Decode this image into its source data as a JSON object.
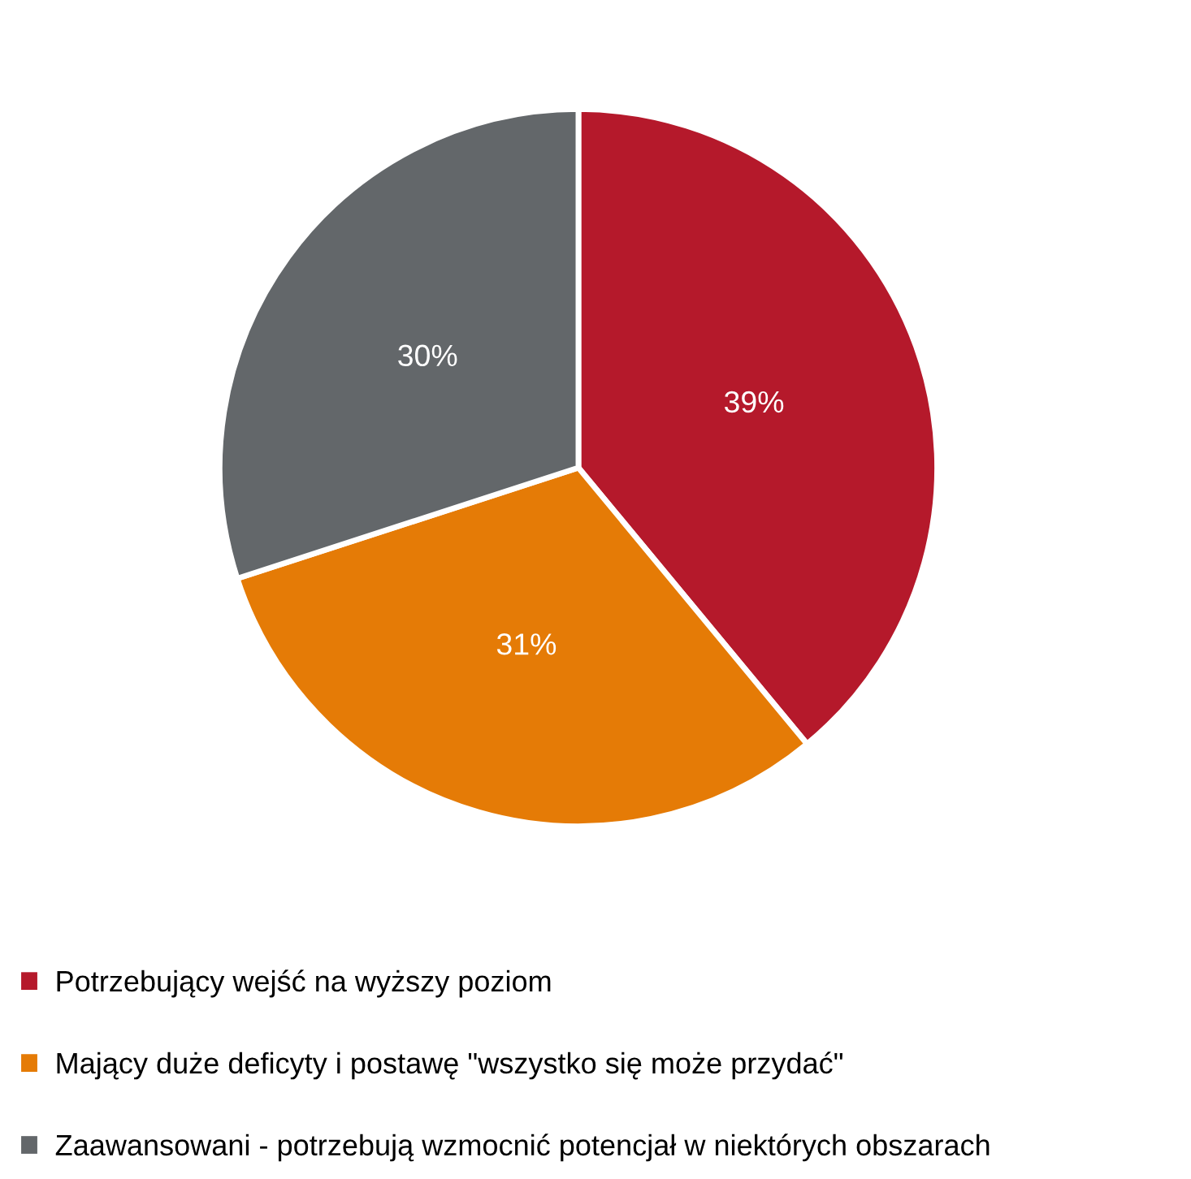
{
  "chart_data": {
    "type": "pie",
    "categories": [
      "Potrzebujący wejść na wyższy poziom",
      "Mający duże deficyty i postawę \"wszystko się może przydać\"",
      "Zaawansowani - potrzebują wzmocnić potencjał w niektórych obszarach"
    ],
    "values": [
      39,
      31,
      30
    ],
    "colors": [
      "#b5192b",
      "#e57b06",
      "#63676a"
    ],
    "value_labels": [
      "39%",
      "31%",
      "30%"
    ],
    "legend": "bottom left"
  }
}
